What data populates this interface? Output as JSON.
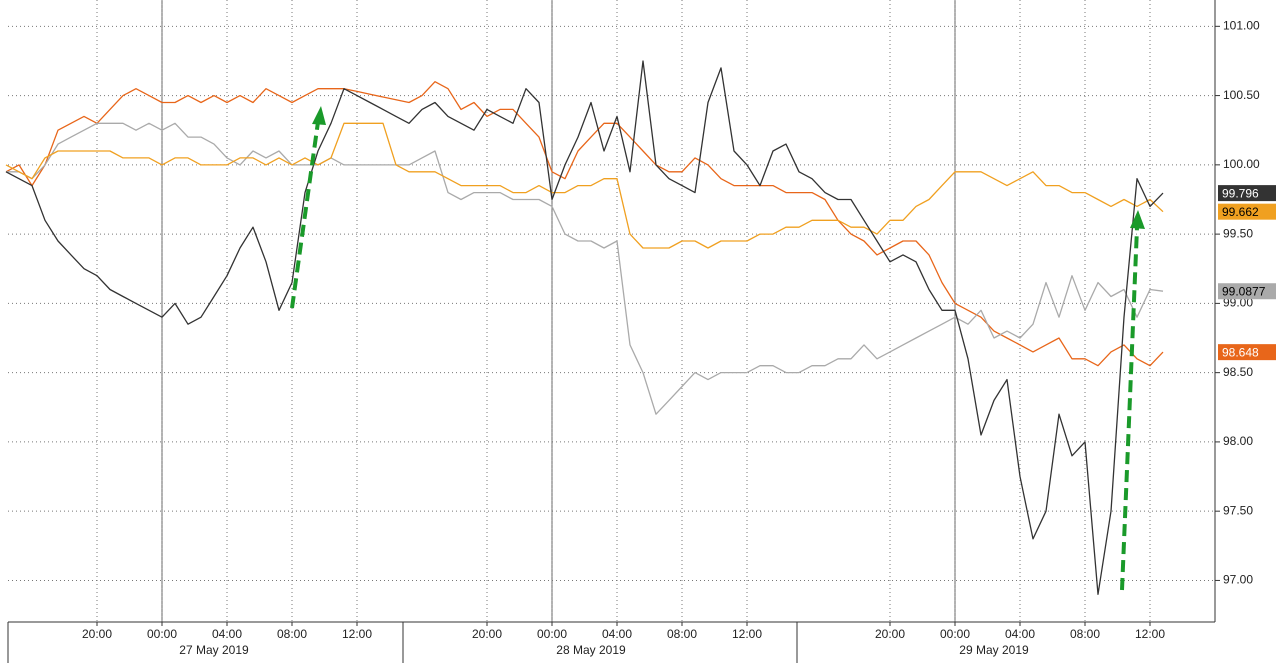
{
  "chart_data": {
    "type": "line",
    "categories": [
      null,
      null,
      null,
      null,
      null,
      null,
      null,
      "20:00",
      null,
      null,
      null,
      null,
      "00:00",
      null,
      null,
      null,
      null,
      "04:00",
      null,
      null,
      null,
      null,
      "08:00",
      null,
      null,
      null,
      null,
      "12:00",
      null,
      null,
      null,
      null,
      null,
      null,
      null,
      null,
      null,
      "20:00",
      null,
      null,
      null,
      null,
      "00:00",
      null,
      null,
      null,
      null,
      "04:00",
      null,
      null,
      null,
      null,
      "08:00",
      null,
      null,
      null,
      null,
      "12:00",
      null,
      null,
      null,
      null,
      null,
      null,
      null,
      null,
      null,
      null,
      "20:00",
      null,
      null,
      null,
      null,
      "00:00",
      null,
      null,
      null,
      null,
      "04:00",
      null,
      null,
      null,
      null,
      "08:00",
      null,
      null,
      null,
      null,
      "12:00",
      null,
      null,
      null,
      null,
      null
    ],
    "date_labels": [
      null,
      null,
      null,
      null,
      null,
      null,
      null,
      null,
      null,
      null,
      null,
      null,
      null,
      null,
      null,
      null,
      "27 May 2019",
      null,
      null,
      null,
      null,
      null,
      null,
      null,
      null,
      null,
      null,
      null,
      null,
      null,
      null,
      null,
      null,
      null,
      null,
      null,
      null,
      null,
      null,
      null,
      null,
      null,
      null,
      null,
      null,
      "28 May 2019",
      null,
      null,
      null,
      null,
      null,
      null,
      null,
      null,
      null,
      null,
      null,
      null,
      null,
      null,
      null,
      null,
      null,
      null,
      null,
      null,
      null,
      null,
      null,
      null,
      null,
      null,
      null,
      null,
      null,
      null,
      "29 May 2019",
      null,
      null,
      null,
      null,
      null,
      null,
      null,
      null,
      null,
      null,
      null,
      null,
      null,
      null,
      null,
      null,
      null
    ],
    "ylim": [
      96.7,
      101.19
    ],
    "yticks": [
      {
        "value": 97,
        "label": "97.00"
      },
      {
        "value": 97.5,
        "label": "97.50"
      },
      {
        "value": 98,
        "label": "98.00"
      },
      {
        "value": 98.5,
        "label": "98.50"
      },
      {
        "value": 99,
        "label": "99.00"
      },
      {
        "value": 99.5,
        "label": "99.50"
      },
      {
        "value": 100,
        "label": "100.00"
      },
      {
        "value": 100.5,
        "label": "100.50"
      },
      {
        "value": 101,
        "label": "101.00"
      }
    ],
    "grid": true,
    "series": [
      {
        "color": "#e8661a",
        "label_color": "#ffffff",
        "values": [
          99.95,
          100.0,
          99.85,
          100.0,
          100.25,
          100.3,
          100.35,
          100.3,
          100.4,
          100.5,
          100.55,
          100.5,
          100.45,
          100.45,
          100.5,
          100.45,
          100.5,
          100.45,
          100.5,
          100.45,
          100.55,
          100.5,
          100.45,
          100.5,
          100.55,
          100.55,
          100.55,
          100.53,
          100.51,
          100.49,
          100.47,
          100.45,
          100.5,
          100.6,
          100.55,
          100.4,
          100.45,
          100.35,
          100.4,
          100.4,
          100.3,
          100.2,
          99.95,
          99.9,
          100.1,
          100.2,
          100.3,
          100.3,
          100.2,
          100.1,
          100.0,
          99.95,
          99.95,
          100.05,
          100.0,
          99.9,
          99.85,
          99.85,
          99.85,
          99.85,
          99.8,
          99.8,
          99.8,
          99.75,
          99.6,
          99.5,
          99.45,
          99.35,
          99.4,
          99.45,
          99.45,
          99.35,
          99.15,
          99.0,
          98.95,
          98.9,
          98.8,
          98.75,
          98.7,
          98.65,
          98.7,
          98.75,
          98.6,
          98.6,
          98.55,
          98.65,
          98.7,
          98.6,
          98.55,
          98.648,
          null,
          null,
          null,
          null
        ]
      },
      {
        "color": "#aaaaaa",
        "label_color": "#000000",
        "values": [
          99.95,
          99.95,
          99.9,
          100.0,
          100.15,
          100.2,
          100.25,
          100.3,
          100.3,
          100.3,
          100.25,
          100.3,
          100.25,
          100.3,
          100.2,
          100.2,
          100.15,
          100.05,
          100.0,
          100.1,
          100.05,
          100.1,
          100.0,
          100.0,
          100.0,
          100.05,
          100.0,
          100.0,
          100.0,
          100.0,
          100.0,
          100.0,
          100.05,
          100.1,
          99.8,
          99.75,
          99.8,
          99.8,
          99.8,
          99.75,
          99.75,
          99.75,
          99.7,
          99.5,
          99.45,
          99.45,
          99.4,
          99.45,
          98.7,
          98.5,
          98.2,
          98.3,
          98.4,
          98.5,
          98.45,
          98.5,
          98.5,
          98.5,
          98.55,
          98.55,
          98.5,
          98.5,
          98.55,
          98.55,
          98.6,
          98.6,
          98.7,
          98.6,
          98.65,
          98.7,
          98.75,
          98.8,
          98.85,
          98.9,
          98.85,
          98.95,
          98.75,
          98.8,
          98.75,
          98.85,
          99.15,
          98.9,
          99.2,
          98.95,
          99.15,
          99.05,
          99.1,
          98.9,
          99.1,
          99.0877,
          null,
          null,
          null,
          null
        ]
      },
      {
        "color": "#f0a020",
        "label_color": "#000000",
        "values": [
          100.0,
          99.95,
          99.9,
          100.05,
          100.1,
          100.1,
          100.1,
          100.1,
          100.1,
          100.05,
          100.05,
          100.05,
          100.0,
          100.05,
          100.05,
          100.0,
          100.0,
          100.0,
          100.05,
          100.05,
          100.0,
          100.05,
          100.0,
          100.05,
          100.0,
          100.05,
          100.3,
          100.3,
          100.3,
          100.3,
          100.0,
          99.95,
          99.95,
          99.95,
          99.9,
          99.85,
          99.85,
          99.85,
          99.85,
          99.8,
          99.8,
          99.85,
          99.8,
          99.8,
          99.85,
          99.85,
          99.9,
          99.9,
          99.5,
          99.4,
          99.4,
          99.4,
          99.45,
          99.45,
          99.4,
          99.45,
          99.45,
          99.45,
          99.5,
          99.5,
          99.55,
          99.55,
          99.6,
          99.6,
          99.6,
          99.55,
          99.55,
          99.5,
          99.6,
          99.6,
          99.7,
          99.75,
          99.85,
          99.95,
          99.95,
          99.95,
          99.9,
          99.85,
          99.9,
          99.95,
          99.85,
          99.85,
          99.8,
          99.8,
          99.75,
          99.7,
          99.75,
          99.7,
          99.75,
          99.662,
          null,
          null,
          null,
          null
        ]
      },
      {
        "color": "#333333",
        "label_color": "#ffffff",
        "values": [
          99.95,
          99.9,
          99.85,
          99.6,
          99.45,
          99.35,
          99.25,
          99.2,
          99.1,
          99.05,
          99.0,
          98.95,
          98.9,
          99.0,
          98.85,
          98.9,
          99.05,
          99.2,
          99.4,
          99.55,
          99.3,
          98.95,
          99.15,
          99.8,
          100.1,
          100.3,
          100.55,
          100.5,
          100.45,
          100.4,
          100.35,
          100.3,
          100.4,
          100.45,
          100.35,
          100.3,
          100.25,
          100.4,
          100.35,
          100.3,
          100.55,
          100.45,
          99.75,
          100.0,
          100.2,
          100.45,
          100.1,
          100.35,
          99.95,
          100.75,
          100.0,
          99.9,
          99.85,
          99.8,
          100.45,
          100.7,
          100.1,
          100.0,
          99.85,
          100.1,
          100.15,
          99.95,
          99.9,
          99.8,
          99.75,
          99.75,
          99.6,
          99.45,
          99.3,
          99.35,
          99.3,
          99.1,
          98.95,
          98.95,
          98.6,
          98.05,
          98.3,
          98.45,
          97.75,
          97.3,
          97.5,
          98.2,
          97.9,
          98.0,
          96.9,
          97.5,
          98.9,
          99.9,
          99.7,
          99.796,
          null,
          null,
          null,
          null
        ]
      }
    ]
  }
}
